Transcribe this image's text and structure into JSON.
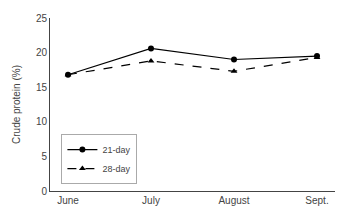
{
  "chart_data": {
    "type": "line",
    "ylabel": "Crude protein (%)",
    "categories": [
      "June",
      "July",
      "August",
      "Sept."
    ],
    "series": [
      {
        "name": "21-day",
        "color": "#000000",
        "values": [
          16.8,
          20.6,
          19.0,
          19.5
        ],
        "marker": "circle",
        "line_style": "solid"
      },
      {
        "name": "28-day",
        "color": "#000000",
        "values": [
          16.8,
          18.8,
          17.3,
          19.3
        ],
        "marker": "triangle-up",
        "line_style": "dashed"
      }
    ],
    "ylim": [
      0,
      25
    ],
    "yticks": [
      0,
      5,
      10,
      15,
      20,
      25
    ],
    "grid": false,
    "legend": "lower left"
  }
}
